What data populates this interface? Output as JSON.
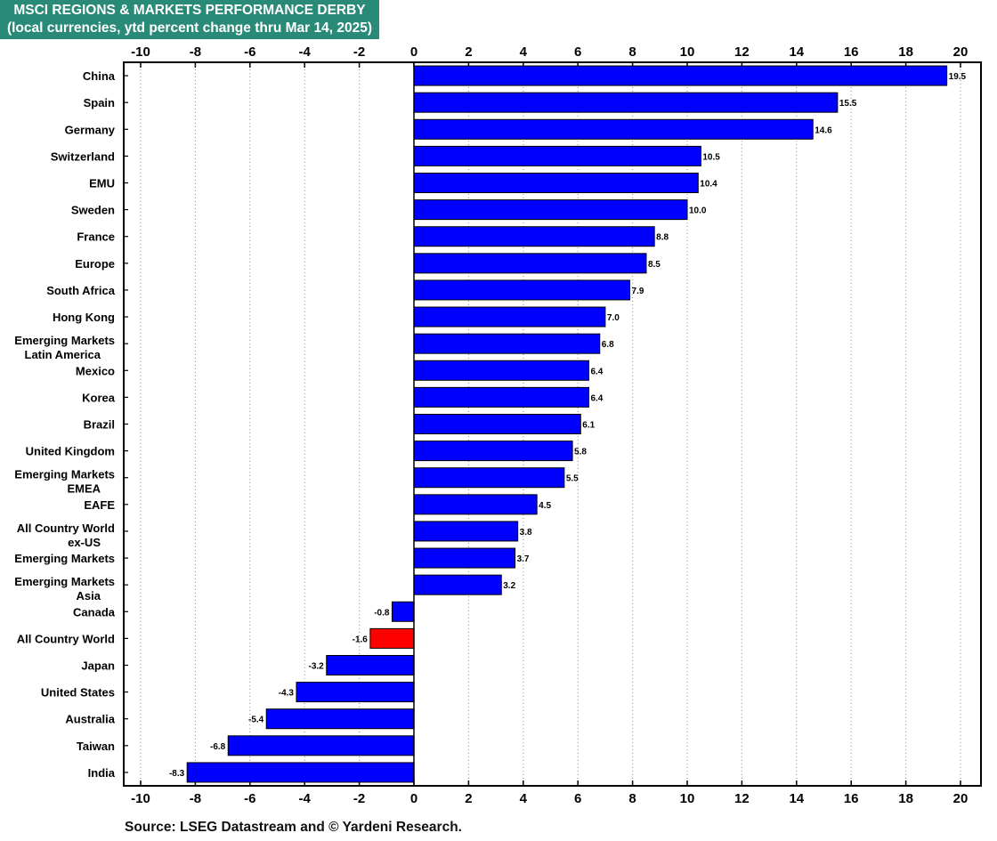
{
  "chart_data": {
    "type": "bar",
    "orientation": "horizontal",
    "title": "MSCI REGIONS & MARKETS PERFORMANCE DERBY",
    "subtitle": "(local currencies, ytd percent change thru Mar 14, 2025)",
    "categories": [
      [
        "China"
      ],
      [
        "Spain"
      ],
      [
        "Germany"
      ],
      [
        "Switzerland"
      ],
      [
        "EMU"
      ],
      [
        "Sweden"
      ],
      [
        "France"
      ],
      [
        "Europe"
      ],
      [
        "South Africa"
      ],
      [
        "Hong Kong"
      ],
      [
        "Emerging Markets",
        "Latin America"
      ],
      [
        "Mexico"
      ],
      [
        "Korea"
      ],
      [
        "Brazil"
      ],
      [
        "United Kingdom"
      ],
      [
        "Emerging Markets",
        "EMEA"
      ],
      [
        "EAFE"
      ],
      [
        "All Country World",
        "ex-US"
      ],
      [
        "Emerging Markets"
      ],
      [
        "Emerging Markets",
        "Asia"
      ],
      [
        "Canada"
      ],
      [
        "All Country World"
      ],
      [
        "Japan"
      ],
      [
        "United States"
      ],
      [
        "Australia"
      ],
      [
        "Taiwan"
      ],
      [
        "India"
      ]
    ],
    "values": [
      19.5,
      15.5,
      14.6,
      10.5,
      10.4,
      10.0,
      8.8,
      8.5,
      7.9,
      7.0,
      6.8,
      6.4,
      6.4,
      6.1,
      5.8,
      5.5,
      4.5,
      3.8,
      3.7,
      3.2,
      -0.8,
      -1.6,
      -3.2,
      -4.3,
      -5.4,
      -6.8,
      -8.3
    ],
    "value_labels": [
      "19.5",
      "15.5",
      "14.6",
      "10.5",
      "10.4",
      "10.0",
      "8.8",
      "8.5",
      "7.9",
      "7.0",
      "6.8",
      "6.4",
      "6.4",
      "6.1",
      "5.8",
      "5.5",
      "4.5",
      "3.8",
      "3.7",
      "3.2",
      "-0.8",
      "-1.6",
      "-3.2",
      "-4.3",
      "-5.4",
      "-6.8",
      "-8.3"
    ],
    "highlight_category": "All Country World",
    "xlim": [
      -10,
      20
    ],
    "xticks": [
      -10,
      -8,
      -6,
      -4,
      -2,
      0,
      2,
      4,
      6,
      8,
      10,
      12,
      14,
      16,
      18,
      20
    ],
    "xtick_labels": [
      "-10",
      "-8",
      "-6",
      "-4",
      "-2",
      "0",
      "2",
      "4",
      "6",
      "8",
      "10",
      "12",
      "14",
      "16",
      "18",
      "20"
    ],
    "grid": "vertical dotted",
    "colors": {
      "bar": "#0000ff",
      "highlight": "#ff0000",
      "title_bg": "#2a8a78"
    }
  },
  "source": "Source: LSEG Datastream and © Yardeni Research."
}
